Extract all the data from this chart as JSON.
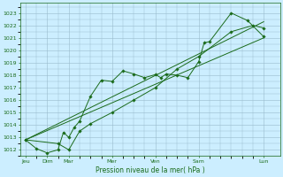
{
  "background_color": "#cceeff",
  "grid_color": "#99bbcc",
  "line_color": "#1a6b1a",
  "xlabel": "Pression niveau de la mer( hPa )",
  "ylim": [
    1011.5,
    1023.8
  ],
  "yticks": [
    1012,
    1013,
    1014,
    1015,
    1016,
    1017,
    1018,
    1019,
    1020,
    1021,
    1022,
    1023
  ],
  "x_labels": [
    "Jeu",
    "Dim",
    "Mar",
    "Mer",
    "Ven",
    "Sam",
    "Lun"
  ],
  "x_tick_pos": [
    0,
    2,
    4,
    8,
    12,
    16,
    22
  ],
  "xlim": [
    -0.5,
    23.5
  ],
  "series1_x": [
    0,
    1,
    2,
    3,
    3.5,
    4,
    4.5,
    5,
    6,
    7,
    8,
    9,
    10,
    11,
    12,
    12.5,
    13,
    14,
    15,
    16,
    16.5,
    17,
    19,
    20.5,
    22
  ],
  "series1_y": [
    1012.8,
    1012.1,
    1011.75,
    1012.0,
    1013.4,
    1013.0,
    1013.8,
    1014.3,
    1016.3,
    1017.6,
    1017.5,
    1018.35,
    1018.1,
    1017.8,
    1018.05,
    1017.8,
    1018.1,
    1018.0,
    1017.8,
    1019.1,
    1020.6,
    1020.7,
    1023.0,
    1022.4,
    1021.1
  ],
  "series2_x": [
    0,
    3,
    4,
    5,
    6,
    8,
    10,
    12,
    14,
    16,
    19,
    21,
    22
  ],
  "series2_y": [
    1012.8,
    1012.5,
    1012.0,
    1013.5,
    1014.1,
    1015.0,
    1016.0,
    1017.0,
    1018.5,
    1019.5,
    1021.5,
    1022.0,
    1021.8
  ],
  "trend1_x": [
    0,
    22
  ],
  "trend1_y": [
    1012.8,
    1022.3
  ],
  "trend2_x": [
    0,
    22
  ],
  "trend2_y": [
    1012.8,
    1021.0
  ]
}
